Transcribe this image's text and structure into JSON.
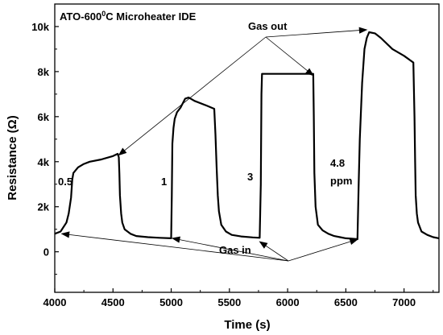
{
  "chart_data": {
    "type": "line",
    "title": "ATO-600",
    "title_sup": "0",
    "title_rest": "C Microheater IDE",
    "xlabel": "Time (s)",
    "ylabel": "Resistance (Ω)",
    "xlim": [
      4000,
      7300
    ],
    "ylim": [
      -1800,
      11000
    ],
    "xticks": [
      4000,
      4500,
      5000,
      5500,
      6000,
      6500,
      7000
    ],
    "yticks": [
      {
        "value": 0,
        "label": "0"
      },
      {
        "value": 2000,
        "label": "2k"
      },
      {
        "value": 4000,
        "label": "4k"
      },
      {
        "value": 6000,
        "label": "6k"
      },
      {
        "value": 8000,
        "label": "8k"
      },
      {
        "value": 10000,
        "label": "10k"
      }
    ],
    "grid": false,
    "legend": "none",
    "series": [
      {
        "x": [
          4000,
          4050,
          4100,
          4120,
          4140,
          4150,
          4160,
          4200,
          4250,
          4300,
          4400,
          4500,
          4540,
          4550,
          4555,
          4560,
          4570,
          4580,
          4600,
          4650,
          4700,
          4800,
          4900,
          5000,
          5005,
          5010,
          5020,
          5030,
          5050,
          5080,
          5100,
          5120,
          5150,
          5200,
          5300,
          5370,
          5380,
          5390,
          5400,
          5410,
          5430,
          5470,
          5520,
          5600,
          5700,
          5760,
          5770,
          5775,
          5780,
          5790,
          5850,
          6000,
          6150,
          6220,
          6225,
          6230,
          6240,
          6260,
          6300,
          6350,
          6400,
          6450,
          6500,
          6550,
          6600,
          6610,
          6620,
          6640,
          6660,
          6680,
          6700,
          6750,
          6800,
          6900,
          7000,
          7080,
          7090,
          7095,
          7100,
          7110,
          7120,
          7150,
          7200,
          7250,
          7300
        ],
        "y": [
          800,
          900,
          1300,
          1700,
          2400,
          3200,
          3500,
          3750,
          3900,
          4000,
          4100,
          4250,
          4350,
          4200,
          3500,
          2500,
          1700,
          1300,
          1000,
          800,
          700,
          650,
          620,
          600,
          2500,
          4800,
          5500,
          5900,
          6200,
          6400,
          6600,
          6800,
          6850,
          6700,
          6500,
          6350,
          5200,
          3800,
          2500,
          1800,
          1200,
          900,
          750,
          680,
          640,
          620,
          3000,
          7000,
          7900,
          7900,
          7900,
          7900,
          7900,
          7900,
          6000,
          3500,
          2000,
          1200,
          950,
          800,
          700,
          650,
          600,
          580,
          560,
          3000,
          5000,
          7500,
          9000,
          9500,
          9750,
          9700,
          9500,
          9000,
          8700,
          8400,
          6000,
          4000,
          2500,
          1700,
          1300,
          900,
          750,
          650,
          600
        ]
      }
    ],
    "annotations": {
      "gas_out": "Gas out",
      "gas_in": "Gas in",
      "conc_1": "0.5",
      "conc_2": "1",
      "conc_3": "3",
      "conc_4a": "4.8",
      "conc_4b": "ppm"
    }
  }
}
